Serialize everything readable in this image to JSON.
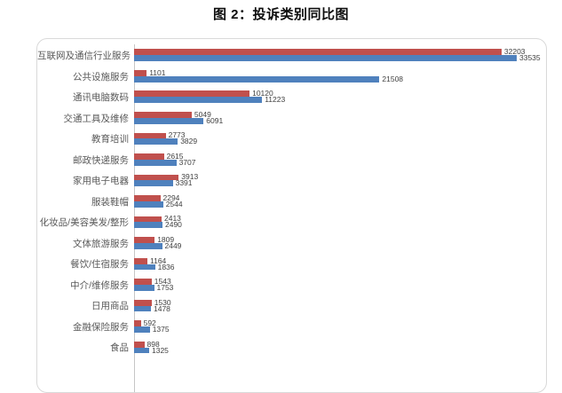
{
  "title": "图 2：投诉类别同比图",
  "chart_data": {
    "type": "bar",
    "orientation": "horizontal",
    "title": "图 2：投诉类别同比图",
    "xlabel": "",
    "ylabel": "",
    "xlim": [
      0,
      35000
    ],
    "grid": false,
    "legend_position": "none",
    "value_labels": true,
    "categories": [
      "互联网及通信行业服务",
      "公共设施服务",
      "通讯电脑数码",
      "交通工具及维修",
      "教育培训",
      "邮政快递服务",
      "家用电子电器",
      "服装鞋帽",
      "化妆品/美容美发/整形",
      "文体旅游服务",
      "餐饮/住宿服务",
      "中介/维修服务",
      "日用商品",
      "金融保险服务",
      "食品"
    ],
    "series": [
      {
        "name": "red-series",
        "color": "#c0504d",
        "values": [
          32203,
          1101,
          10120,
          5049,
          2773,
          2615,
          3913,
          2294,
          2413,
          1809,
          1164,
          1543,
          1530,
          592,
          898
        ]
      },
      {
        "name": "blue-series",
        "color": "#4f81bd",
        "values": [
          33535,
          21508,
          11223,
          6091,
          3829,
          3707,
          3391,
          2544,
          2490,
          2449,
          1836,
          1753,
          1478,
          1375,
          1325
        ]
      }
    ],
    "colors": {
      "frame_border": "#d9d9d9",
      "axis_line": "#c6c6c6",
      "category_label": "#595959",
      "value_label": "#404040"
    }
  }
}
